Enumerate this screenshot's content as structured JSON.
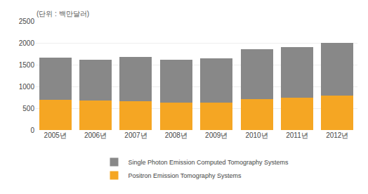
{
  "chart_data": {
    "type": "bar",
    "stacked": true,
    "categories": [
      "2005년",
      "2006년",
      "2007년",
      "2008년",
      "2009년",
      "2010년",
      "2011년",
      "2012년"
    ],
    "series": [
      {
        "name": "Positron Emission Tomography Systems",
        "color": "#F5A623",
        "values": [
          700,
          670,
          665,
          630,
          630,
          710,
          750,
          790
        ]
      },
      {
        "name": "Single Photon Emission Computed Tomography Systems",
        "color": "#888888",
        "values": [
          960,
          950,
          1010,
          990,
          1020,
          1140,
          1160,
          1210
        ]
      }
    ],
    "annotations": [
      {
        "text": "(단위 : 백만달러)"
      }
    ],
    "ylim": [
      0,
      2500
    ],
    "yticks": [
      0,
      500,
      1000,
      1500,
      2000,
      2500
    ],
    "grid": true,
    "legend": "bottom"
  }
}
